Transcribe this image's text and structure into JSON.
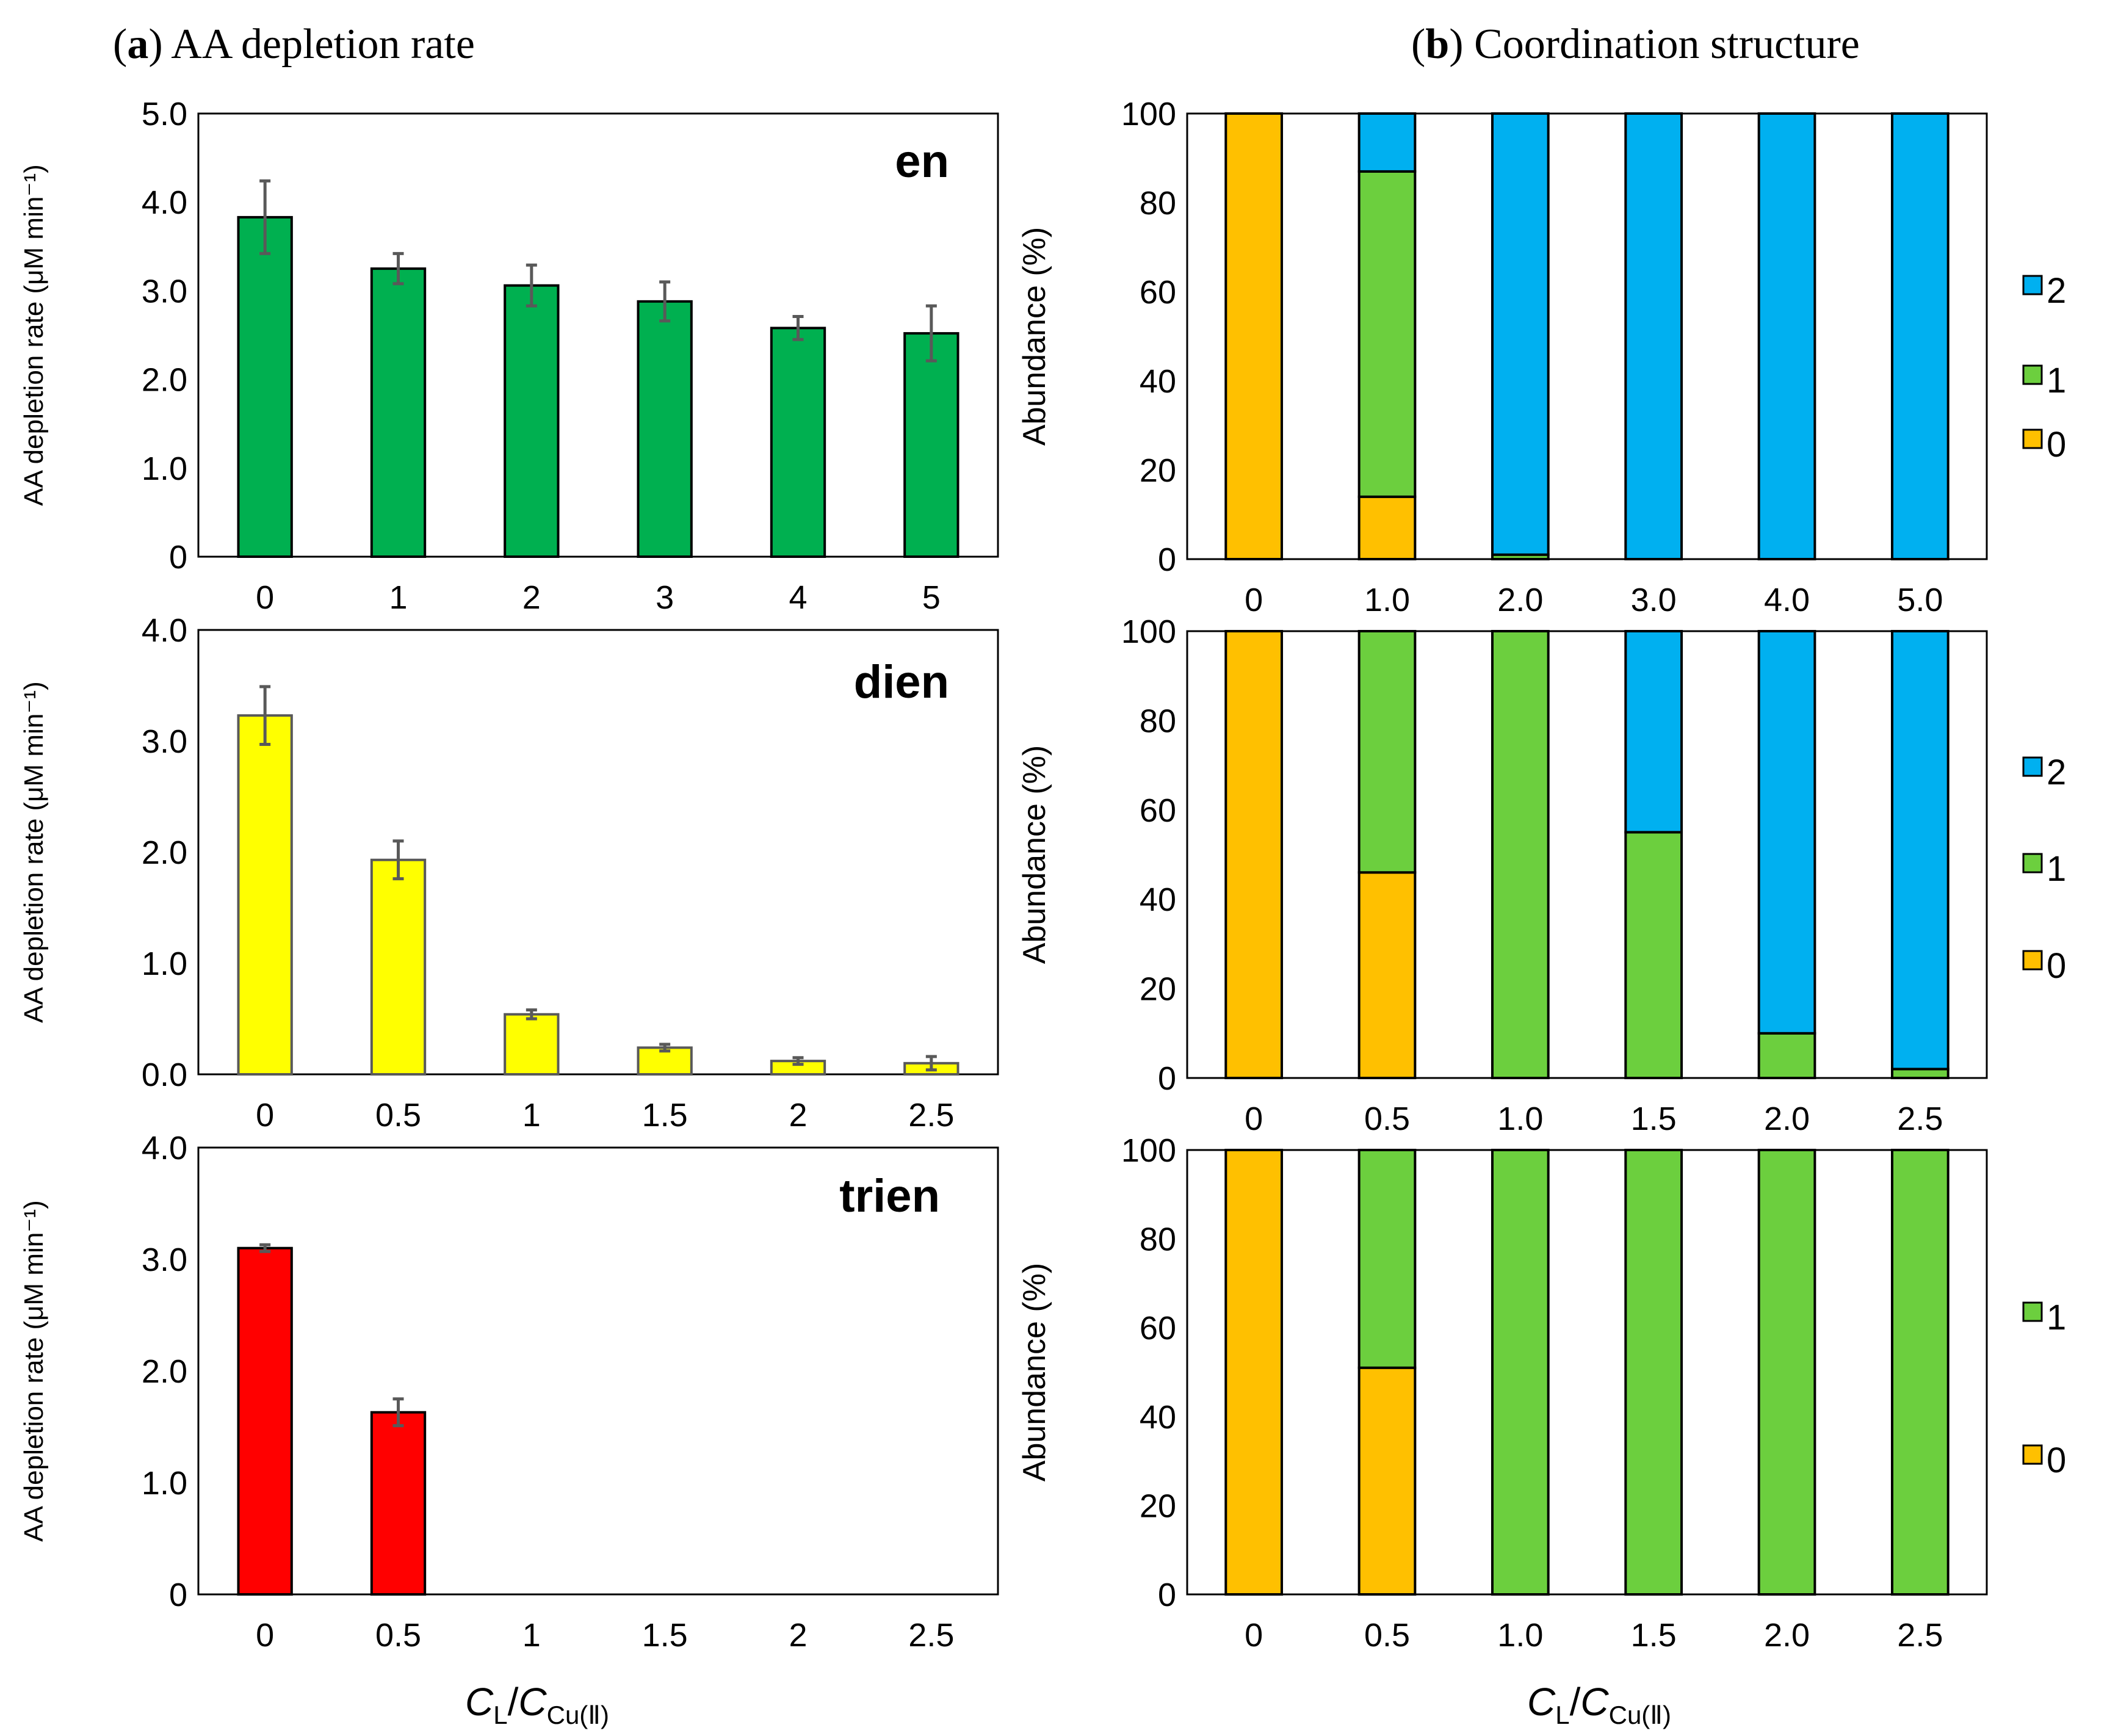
{
  "panel_a": {
    "label": "a",
    "title": "AA depletion rate"
  },
  "panel_b": {
    "label": "b",
    "title": "Coordination structure"
  },
  "x_axis_title": {
    "main": "C",
    "main_sub": "L",
    "slash": "/",
    "denom": "C",
    "denom_sub": "Cu(Ⅱ)"
  },
  "colors": {
    "en": "#00b050",
    "dien": "#ffff00",
    "trien": "#ff0000",
    "state0": "#ffc000",
    "state1": "#6ccf3e",
    "state2": "#00b0f0",
    "errorbar": "#595959"
  },
  "chart_data": [
    {
      "id": "rate-en",
      "type": "bar",
      "panel": "a",
      "ligand": "en",
      "ylabel": "AA depletion rate (μM min⁻¹)",
      "ylim": [
        0,
        5
      ],
      "yticks": [
        "0",
        "1.0",
        "2.0",
        "3.0",
        "4.0",
        "5.0"
      ],
      "categories": [
        "0",
        "1",
        "2",
        "3",
        "4",
        "5"
      ],
      "values": [
        3.83,
        3.25,
        3.06,
        2.88,
        2.58,
        2.52
      ],
      "errors": [
        0.41,
        0.17,
        0.23,
        0.22,
        0.13,
        0.31
      ],
      "color_key": "en"
    },
    {
      "id": "rate-dien",
      "type": "bar",
      "panel": "a",
      "ligand": "dien",
      "ylabel": "AA depletion rate (μM min⁻¹)",
      "ylim": [
        0,
        4
      ],
      "yticks": [
        "0.0",
        "1.0",
        "2.0",
        "3.0",
        "4.0"
      ],
      "categories": [
        "0",
        "0.5",
        "1",
        "1.5",
        "2",
        "2.5"
      ],
      "values": [
        3.23,
        1.93,
        0.54,
        0.24,
        0.12,
        0.1
      ],
      "errors": [
        0.26,
        0.17,
        0.04,
        0.03,
        0.03,
        0.06
      ],
      "color_key": "dien"
    },
    {
      "id": "rate-trien",
      "type": "bar",
      "panel": "a",
      "ligand": "trien",
      "ylabel": "AA depletion rate (μM min⁻¹)",
      "ylim": [
        0,
        4
      ],
      "yticks": [
        "0",
        "1.0",
        "2.0",
        "3.0",
        "4.0"
      ],
      "categories": [
        "0",
        "0.5",
        "1",
        "1.5",
        "2",
        "2.5"
      ],
      "values": [
        3.1,
        1.63,
        0,
        0,
        0,
        0
      ],
      "errors": [
        0.03,
        0.12,
        0,
        0,
        0,
        0
      ],
      "color_key": "trien"
    },
    {
      "id": "abund-en",
      "type": "bar",
      "stacked": true,
      "panel": "b",
      "ylabel": "Abundance (%)",
      "ylim": [
        0,
        100
      ],
      "yticks": [
        "0",
        "20",
        "40",
        "60",
        "80",
        "100"
      ],
      "categories": [
        "0",
        "1.0",
        "2.0",
        "3.0",
        "4.0",
        "5.0"
      ],
      "series": [
        {
          "name": "0",
          "color_key": "state0",
          "values": [
            100,
            14,
            0,
            0,
            0,
            0
          ]
        },
        {
          "name": "1",
          "color_key": "state1",
          "values": [
            0,
            73,
            1,
            0,
            0,
            0
          ]
        },
        {
          "name": "2",
          "color_key": "state2",
          "values": [
            0,
            13,
            99,
            100,
            100,
            100
          ]
        }
      ],
      "legend": [
        "2",
        "1",
        "0"
      ]
    },
    {
      "id": "abund-dien",
      "type": "bar",
      "stacked": true,
      "panel": "b",
      "ylabel": "Abundance (%)",
      "ylim": [
        0,
        100
      ],
      "yticks": [
        "0",
        "20",
        "40",
        "60",
        "80",
        "100"
      ],
      "categories": [
        "0",
        "0.5",
        "1.0",
        "1.5",
        "2.0",
        "2.5"
      ],
      "series": [
        {
          "name": "0",
          "color_key": "state0",
          "values": [
            100,
            46,
            0,
            0,
            0,
            0
          ]
        },
        {
          "name": "1",
          "color_key": "state1",
          "values": [
            0,
            54,
            100,
            55,
            10,
            2
          ]
        },
        {
          "name": "2",
          "color_key": "state2",
          "values": [
            0,
            0,
            0,
            45,
            90,
            98
          ]
        }
      ],
      "legend": [
        "2",
        "1",
        "0"
      ]
    },
    {
      "id": "abund-trien",
      "type": "bar",
      "stacked": true,
      "panel": "b",
      "ylabel": "Abundance (%)",
      "ylim": [
        0,
        100
      ],
      "yticks": [
        "0",
        "20",
        "40",
        "60",
        "80",
        "100"
      ],
      "categories": [
        "0",
        "0.5",
        "1.0",
        "1.5",
        "2.0",
        "2.5"
      ],
      "series": [
        {
          "name": "0",
          "color_key": "state0",
          "values": [
            100,
            51,
            0,
            0,
            0,
            0
          ]
        },
        {
          "name": "1",
          "color_key": "state1",
          "values": [
            0,
            49,
            100,
            100,
            100,
            100
          ]
        }
      ],
      "legend": [
        "1",
        "0"
      ]
    }
  ]
}
